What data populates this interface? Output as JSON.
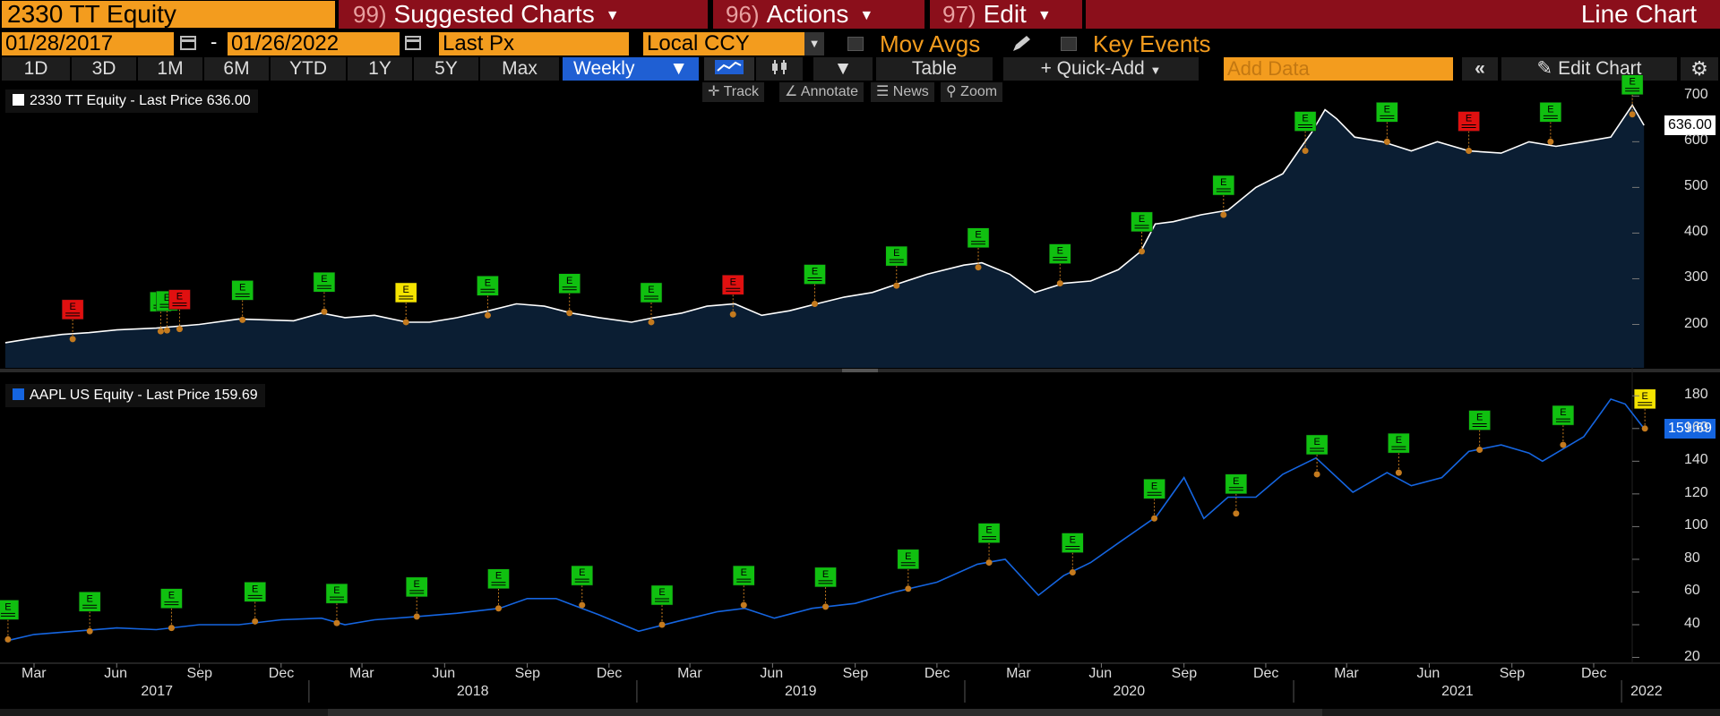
{
  "header": {
    "ticker": "2330 TT Equity",
    "menus": [
      {
        "num": "99)",
        "label": "Suggested Charts"
      },
      {
        "num": "96)",
        "label": "Actions"
      },
      {
        "num": "97)",
        "label": "Edit"
      }
    ],
    "chart_type_label": "Line Chart"
  },
  "settings": {
    "start_date": "01/28/2017",
    "end_date": "01/26/2022",
    "date_sep": "-",
    "field": "Last Px",
    "currency": "Local CCY",
    "mov_avgs": "Mov Avgs",
    "key_events": "Key Events"
  },
  "periods": [
    "1D",
    "3D",
    "1M",
    "6M",
    "YTD",
    "1Y",
    "5Y",
    "Max"
  ],
  "frequency": "Weekly",
  "toolbar": {
    "table": "Table",
    "quick_add": "+ Quick-Add",
    "add_data_placeholder": "Add Data",
    "edit_chart": "Edit Chart"
  },
  "tools": [
    "Track",
    "Annotate",
    "News",
    "Zoom"
  ],
  "colors": {
    "accent_orange": "#f39c1e",
    "menu_red": "#8b0f1b",
    "tsmc_line": "#ffffff",
    "tsmc_fill": "#0b1e33",
    "aapl_line": "#1565e0",
    "event_green": "#10c010",
    "event_red": "#e01010",
    "event_yellow": "#f5e400"
  },
  "chart_data": [
    {
      "type": "area",
      "legend": "2330 TT Equity - Last Price 636.00",
      "last_value_label": "636.00",
      "y_ticks": [
        "700",
        "600",
        "500",
        "400",
        "300",
        "200"
      ],
      "ylim": [
        105,
        730
      ],
      "x": [
        "2017-01-28",
        "2017-03-01",
        "2017-04-01",
        "2017-05-01",
        "2017-06-01",
        "2017-07-15",
        "2017-09-01",
        "2017-10-15",
        "2017-11-15",
        "2017-12-15",
        "2018-01-15",
        "2018-02-10",
        "2018-03-15",
        "2018-04-20",
        "2018-05-15",
        "2018-06-15",
        "2018-07-20",
        "2018-08-20",
        "2018-09-20",
        "2018-10-20",
        "2018-11-20",
        "2018-12-26",
        "2019-01-20",
        "2019-02-20",
        "2019-03-20",
        "2019-04-20",
        "2019-05-20",
        "2019-06-20",
        "2019-07-20",
        "2019-08-20",
        "2019-09-20",
        "2019-10-20",
        "2019-11-20",
        "2019-12-31",
        "2020-01-20",
        "2020-02-20",
        "2020-03-19",
        "2020-04-20",
        "2020-05-20",
        "2020-06-20",
        "2020-07-15",
        "2020-07-31",
        "2020-08-20",
        "2020-09-20",
        "2020-10-20",
        "2020-11-20",
        "2020-12-20",
        "2021-01-10",
        "2021-01-21",
        "2021-02-05",
        "2021-02-18",
        "2021-03-10",
        "2021-04-10",
        "2021-05-12",
        "2021-06-10",
        "2021-07-15",
        "2021-08-20",
        "2021-09-20",
        "2021-10-20",
        "2021-11-20",
        "2021-12-20",
        "2022-01-13",
        "2022-01-26"
      ],
      "values": [
        160,
        170,
        178,
        182,
        188,
        192,
        200,
        212,
        210,
        208,
        225,
        215,
        220,
        205,
        205,
        215,
        230,
        245,
        240,
        225,
        215,
        205,
        215,
        225,
        240,
        245,
        220,
        230,
        245,
        260,
        270,
        290,
        310,
        330,
        335,
        310,
        270,
        290,
        295,
        320,
        360,
        420,
        425,
        440,
        450,
        500,
        530,
        590,
        620,
        670,
        650,
        610,
        600,
        580,
        600,
        580,
        575,
        600,
        590,
        600,
        610,
        680,
        636
      ],
      "events": [
        {
          "date": "2017-04-13",
          "color": "red",
          "value": 168
        },
        {
          "date": "2017-07-20",
          "color": "green",
          "value": 185
        },
        {
          "date": "2017-07-27",
          "color": "green",
          "value": 187
        },
        {
          "date": "2017-08-10",
          "color": "red",
          "value": 190
        },
        {
          "date": "2017-10-19",
          "color": "green",
          "value": 210
        },
        {
          "date": "2018-01-18",
          "color": "green",
          "value": 228
        },
        {
          "date": "2018-04-19",
          "color": "yellow",
          "value": 205
        },
        {
          "date": "2018-07-19",
          "color": "green",
          "value": 220
        },
        {
          "date": "2018-10-18",
          "color": "green",
          "value": 225
        },
        {
          "date": "2019-01-17",
          "color": "green",
          "value": 205
        },
        {
          "date": "2019-04-18",
          "color": "red",
          "value": 222
        },
        {
          "date": "2019-07-18",
          "color": "green",
          "value": 245
        },
        {
          "date": "2019-10-17",
          "color": "green",
          "value": 285
        },
        {
          "date": "2020-01-16",
          "color": "green",
          "value": 325
        },
        {
          "date": "2020-04-16",
          "color": "green",
          "value": 290
        },
        {
          "date": "2020-07-16",
          "color": "green",
          "value": 360
        },
        {
          "date": "2020-10-15",
          "color": "green",
          "value": 440
        },
        {
          "date": "2021-01-14",
          "color": "green",
          "value": 580
        },
        {
          "date": "2021-04-15",
          "color": "green",
          "value": 600
        },
        {
          "date": "2021-07-15",
          "color": "red",
          "value": 580
        },
        {
          "date": "2021-10-14",
          "color": "green",
          "value": 600
        },
        {
          "date": "2022-01-13",
          "color": "green",
          "value": 660
        }
      ]
    },
    {
      "type": "line",
      "legend": "AAPL US Equity - Last Price 159.69",
      "last_value_label": "159.69",
      "y_ticks": [
        "180",
        "160",
        "140",
        "120",
        "100",
        "80",
        "60",
        "40",
        "20"
      ],
      "ylim": [
        17,
        190
      ],
      "x": [
        "2017-01-28",
        "2017-03-01",
        "2017-04-15",
        "2017-06-01",
        "2017-07-15",
        "2017-09-01",
        "2017-10-15",
        "2017-12-01",
        "2018-01-15",
        "2018-02-10",
        "2018-03-15",
        "2018-05-01",
        "2018-06-15",
        "2018-08-01",
        "2018-09-01",
        "2018-10-03",
        "2018-11-20",
        "2019-01-03",
        "2019-02-15",
        "2019-04-01",
        "2019-05-01",
        "2019-06-03",
        "2019-07-15",
        "2019-09-01",
        "2019-10-15",
        "2019-12-01",
        "2020-01-15",
        "2020-02-15",
        "2020-03-23",
        "2020-04-20",
        "2020-05-20",
        "2020-06-20",
        "2020-08-01",
        "2020-09-01",
        "2020-09-23",
        "2020-10-20",
        "2020-11-20",
        "2020-12-20",
        "2021-01-26",
        "2021-03-08",
        "2021-04-15",
        "2021-05-12",
        "2021-06-15",
        "2021-07-15",
        "2021-08-20",
        "2021-09-20",
        "2021-10-05",
        "2021-11-20",
        "2021-12-20",
        "2022-01-05",
        "2022-01-26"
      ],
      "values": [
        30,
        34,
        36,
        38,
        37,
        40,
        40,
        43,
        44,
        40,
        43,
        45,
        47,
        50,
        56,
        56,
        46,
        36,
        42,
        48,
        50,
        44,
        50,
        53,
        60,
        66,
        77,
        80,
        58,
        70,
        78,
        90,
        106,
        130,
        105,
        118,
        118,
        132,
        142,
        121,
        133,
        125,
        130,
        146,
        150,
        145,
        140,
        155,
        178,
        175,
        160
      ],
      "events": [
        {
          "date": "2017-01-31",
          "color": "green",
          "value": 31
        },
        {
          "date": "2017-05-02",
          "color": "green",
          "value": 36
        },
        {
          "date": "2017-08-01",
          "color": "green",
          "value": 38
        },
        {
          "date": "2017-11-02",
          "color": "green",
          "value": 42
        },
        {
          "date": "2018-02-01",
          "color": "green",
          "value": 41
        },
        {
          "date": "2018-05-01",
          "color": "green",
          "value": 45
        },
        {
          "date": "2018-07-31",
          "color": "green",
          "value": 50
        },
        {
          "date": "2018-11-01",
          "color": "green",
          "value": 52
        },
        {
          "date": "2019-01-29",
          "color": "green",
          "value": 40
        },
        {
          "date": "2019-04-30",
          "color": "green",
          "value": 52
        },
        {
          "date": "2019-07-30",
          "color": "green",
          "value": 51
        },
        {
          "date": "2019-10-30",
          "color": "green",
          "value": 62
        },
        {
          "date": "2020-01-28",
          "color": "green",
          "value": 78
        },
        {
          "date": "2020-04-30",
          "color": "green",
          "value": 72
        },
        {
          "date": "2020-07-30",
          "color": "green",
          "value": 105
        },
        {
          "date": "2020-10-29",
          "color": "green",
          "value": 108
        },
        {
          "date": "2021-01-27",
          "color": "green",
          "value": 132
        },
        {
          "date": "2021-04-28",
          "color": "green",
          "value": 133
        },
        {
          "date": "2021-07-27",
          "color": "green",
          "value": 147
        },
        {
          "date": "2021-10-28",
          "color": "green",
          "value": 150
        },
        {
          "date": "2022-01-27",
          "color": "yellow",
          "value": 160
        }
      ]
    }
  ],
  "x_axis": {
    "month_ticks": [
      {
        "label": "Mar",
        "date": "2017-03-01"
      },
      {
        "label": "Jun",
        "date": "2017-06-01"
      },
      {
        "label": "Sep",
        "date": "2017-09-01"
      },
      {
        "label": "Dec",
        "date": "2017-12-01"
      },
      {
        "label": "Mar",
        "date": "2018-03-01"
      },
      {
        "label": "Jun",
        "date": "2018-06-01"
      },
      {
        "label": "Sep",
        "date": "2018-09-01"
      },
      {
        "label": "Dec",
        "date": "2018-12-01"
      },
      {
        "label": "Mar",
        "date": "2019-03-01"
      },
      {
        "label": "Jun",
        "date": "2019-06-01"
      },
      {
        "label": "Sep",
        "date": "2019-09-01"
      },
      {
        "label": "Dec",
        "date": "2019-12-01"
      },
      {
        "label": "Mar",
        "date": "2020-03-01"
      },
      {
        "label": "Jun",
        "date": "2020-06-01"
      },
      {
        "label": "Sep",
        "date": "2020-09-01"
      },
      {
        "label": "Dec",
        "date": "2020-12-01"
      },
      {
        "label": "Mar",
        "date": "2021-03-01"
      },
      {
        "label": "Jun",
        "date": "2021-06-01"
      },
      {
        "label": "Sep",
        "date": "2021-09-01"
      },
      {
        "label": "Dec",
        "date": "2021-12-01"
      }
    ],
    "years": [
      "2017",
      "2018",
      "2019",
      "2020",
      "2021",
      "2022"
    ]
  }
}
